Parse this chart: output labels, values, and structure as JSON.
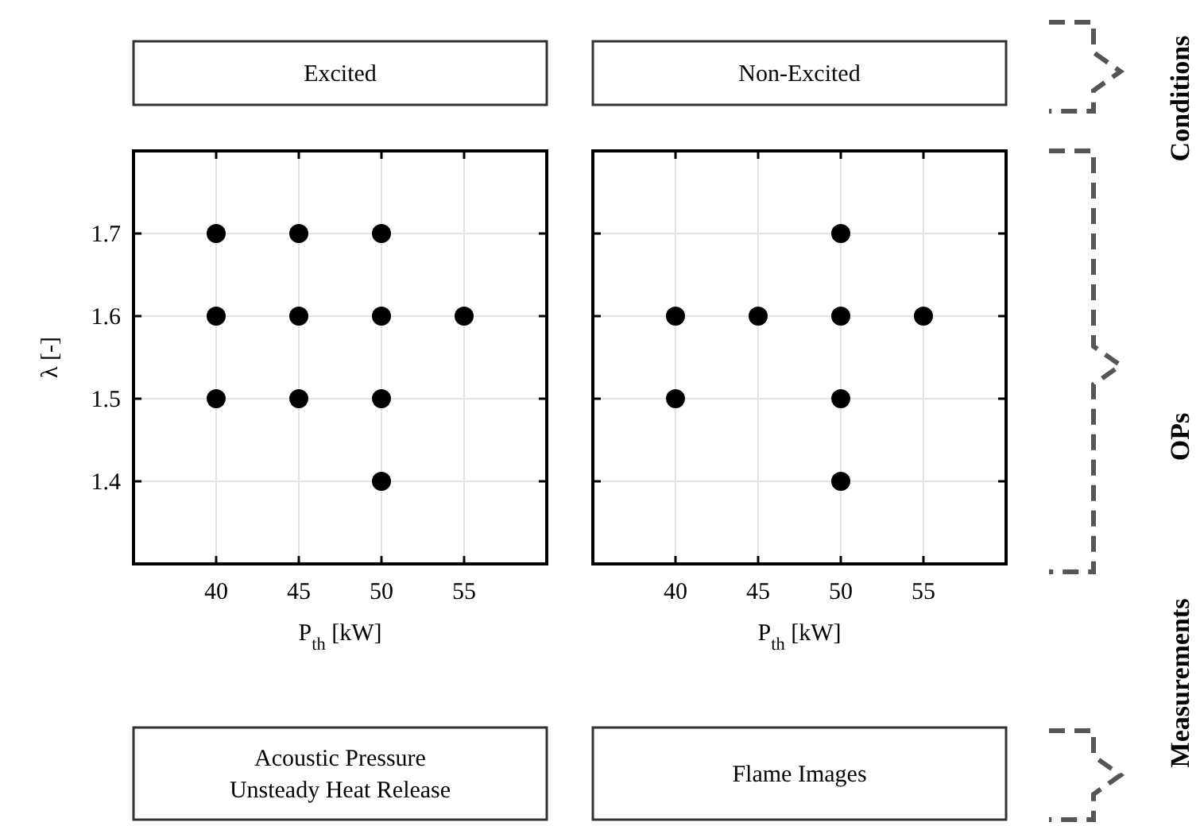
{
  "chart_data": [
    {
      "type": "scatter",
      "title": "Excited",
      "xlabel": "P$_{th}$ [kW]",
      "ylabel": "λ [-]",
      "x": [
        40,
        45,
        50,
        40,
        45,
        50,
        55,
        40,
        45,
        50,
        50
      ],
      "values": [
        1.7,
        1.7,
        1.7,
        1.6,
        1.6,
        1.6,
        1.6,
        1.5,
        1.5,
        1.5,
        1.4
      ],
      "color": "#000000",
      "marker": "circle",
      "xlim": [
        35,
        60
      ],
      "ylim": [
        1.3,
        1.8
      ],
      "xticks": [
        40,
        45,
        50,
        55
      ],
      "yticks": [
        1.4,
        1.5,
        1.6,
        1.7
      ],
      "grid": true,
      "annotations": [
        "Acoustic Pressure\nUnsteady Heat Release"
      ]
    },
    {
      "type": "scatter",
      "title": "Non-Excited",
      "xlabel": "P$_{th}$ [kW]",
      "x": [
        50,
        40,
        45,
        50,
        55,
        40,
        50,
        50
      ],
      "values": [
        1.7,
        1.6,
        1.6,
        1.6,
        1.6,
        1.5,
        1.5,
        1.4
      ],
      "color": "#000000",
      "marker": "circle",
      "xlim": [
        35,
        60
      ],
      "ylim": [
        1.3,
        1.8
      ],
      "xticks": [
        40,
        45,
        50,
        55
      ],
      "yticks": [
        1.4,
        1.5,
        1.6,
        1.7
      ],
      "grid": true,
      "tick_labels": "x",
      "annotations": [
        "Flame Images",
        "Conditions",
        "OPs",
        "Measurements"
      ]
    }
  ]
}
